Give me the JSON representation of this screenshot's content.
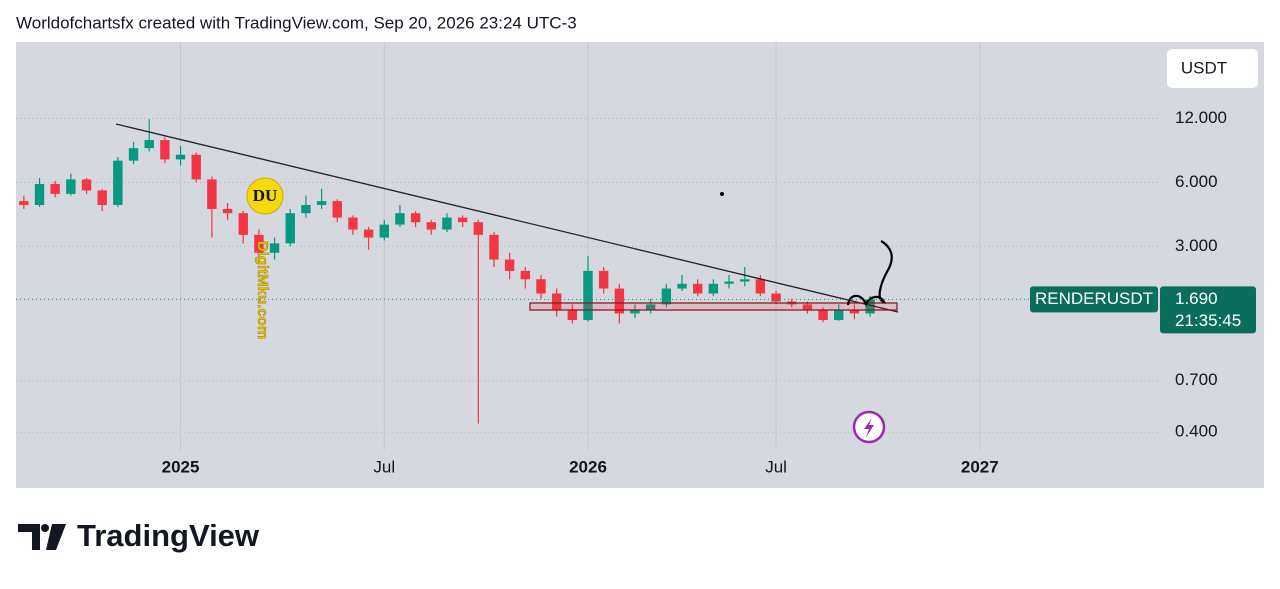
{
  "header": {
    "text": "Worldofchartsfx created with TradingView.com, Sep 20, 2026 23:24 UTC-3"
  },
  "footer": {
    "brand": "TradingView"
  },
  "chart_data": {
    "type": "candlestick",
    "currency": "USDT",
    "symbol": "RENDERUSDT",
    "last_price": {
      "value": 1.69,
      "label": "1.690"
    },
    "countdown": "21:35:45",
    "watermark": {
      "logo": "DU",
      "text": "DigitMku.com"
    },
    "log_scale": true,
    "grid": true,
    "up_color": "#089981",
    "down_color": "#f23645",
    "ylim": [
      0.33,
      27.5
    ],
    "yticks": [
      {
        "value": 12,
        "label": "12.000"
      },
      {
        "value": 6,
        "label": "6.000"
      },
      {
        "value": 3,
        "label": "3.000"
      },
      {
        "value": 0.7,
        "label": "0.700"
      },
      {
        "value": 0.4,
        "label": "0.400"
      }
    ],
    "categories": [
      null,
      null,
      null,
      null,
      null,
      null,
      null,
      null,
      null,
      null,
      "2025",
      null,
      null,
      null,
      null,
      null,
      null,
      null,
      null,
      null,
      null,
      null,
      null,
      "Jul",
      null,
      null,
      null,
      null,
      null,
      null,
      null,
      null,
      null,
      null,
      null,
      null,
      "2026",
      null,
      null,
      null,
      null,
      null,
      null,
      null,
      null,
      null,
      null,
      null,
      "Jul",
      null,
      null,
      null,
      null,
      null,
      null,
      null,
      null,
      null,
      null,
      null,
      null,
      "2027",
      null,
      null,
      null,
      null,
      null,
      null,
      null,
      null,
      null,
      null,
      null
    ],
    "open": [
      4.9,
      4.7,
      5.9,
      5.3,
      6.2,
      5.5,
      4.7,
      7.6,
      8.7,
      9.5,
      7.7,
      8.1,
      6.2,
      4.5,
      4.3,
      3.4,
      2.8,
      3.1,
      4.3,
      4.7,
      4.9,
      4.1,
      3.6,
      3.3,
      3.8,
      4.3,
      3.9,
      3.6,
      4.1,
      3.9,
      3.4,
      2.6,
      2.3,
      2.1,
      1.8,
      1.5,
      1.35,
      2.3,
      1.9,
      1.45,
      1.5,
      1.6,
      1.9,
      2.0,
      1.8,
      2.0,
      2.05,
      2.1,
      1.8,
      1.65,
      1.6,
      1.5,
      1.35,
      1.5,
      1.45,
      null,
      null,
      null,
      null,
      null,
      null,
      null,
      null,
      null,
      null,
      null,
      null,
      null,
      null,
      null,
      null,
      null,
      null
    ],
    "high": [
      5.2,
      6.3,
      6.1,
      6.6,
      6.3,
      5.6,
      7.9,
      9.3,
      11.9,
      9.8,
      8.9,
      8.3,
      6.4,
      4.8,
      4.4,
      3.6,
      3.3,
      4.5,
      5.2,
      5.6,
      5.0,
      4.2,
      3.7,
      4.0,
      4.7,
      4.4,
      4.0,
      4.3,
      4.2,
      4.0,
      3.5,
      2.8,
      2.4,
      2.2,
      1.9,
      1.6,
      2.7,
      2.4,
      2.0,
      1.6,
      1.7,
      2.0,
      2.2,
      2.1,
      2.1,
      2.2,
      2.4,
      2.2,
      1.85,
      1.7,
      1.65,
      1.55,
      1.6,
      1.6,
      1.75,
      null,
      null,
      null,
      null,
      null,
      null,
      null,
      null,
      null,
      null,
      null,
      null,
      null,
      null,
      null,
      null,
      null,
      null
    ],
    "low": [
      4.5,
      4.6,
      5.1,
      5.2,
      5.3,
      4.4,
      4.6,
      7.3,
      8.4,
      7.4,
      7.2,
      6.0,
      3.3,
      4.0,
      3.1,
      2.5,
      2.6,
      3.0,
      4.1,
      4.5,
      3.9,
      3.4,
      2.9,
      3.2,
      3.7,
      3.7,
      3.4,
      3.5,
      3.7,
      0.44,
      2.4,
      2.1,
      1.9,
      1.7,
      1.4,
      1.3,
      1.33,
      1.8,
      1.3,
      1.38,
      1.45,
      1.55,
      1.85,
      1.75,
      1.75,
      1.9,
      1.95,
      1.75,
      1.6,
      1.55,
      1.45,
      1.32,
      1.34,
      1.36,
      1.4,
      null,
      null,
      null,
      null,
      null,
      null,
      null,
      null,
      null,
      null,
      null,
      null,
      null,
      null,
      null,
      null,
      null,
      null
    ],
    "close": [
      4.7,
      5.9,
      5.3,
      6.2,
      5.5,
      4.7,
      7.6,
      8.7,
      9.5,
      7.7,
      8.1,
      6.2,
      4.5,
      4.3,
      3.4,
      2.8,
      3.1,
      4.3,
      4.7,
      4.9,
      4.1,
      3.6,
      3.3,
      3.8,
      4.3,
      3.9,
      3.6,
      4.1,
      3.9,
      3.4,
      2.6,
      2.3,
      2.1,
      1.8,
      1.5,
      1.35,
      2.3,
      1.9,
      1.45,
      1.5,
      1.6,
      1.9,
      2.0,
      1.8,
      2.0,
      2.05,
      2.1,
      1.8,
      1.65,
      1.6,
      1.5,
      1.35,
      1.5,
      1.45,
      1.69,
      null,
      null,
      null,
      null,
      null,
      null,
      null,
      null,
      null,
      null,
      null,
      null,
      null,
      null,
      null,
      null,
      null,
      null
    ]
  }
}
